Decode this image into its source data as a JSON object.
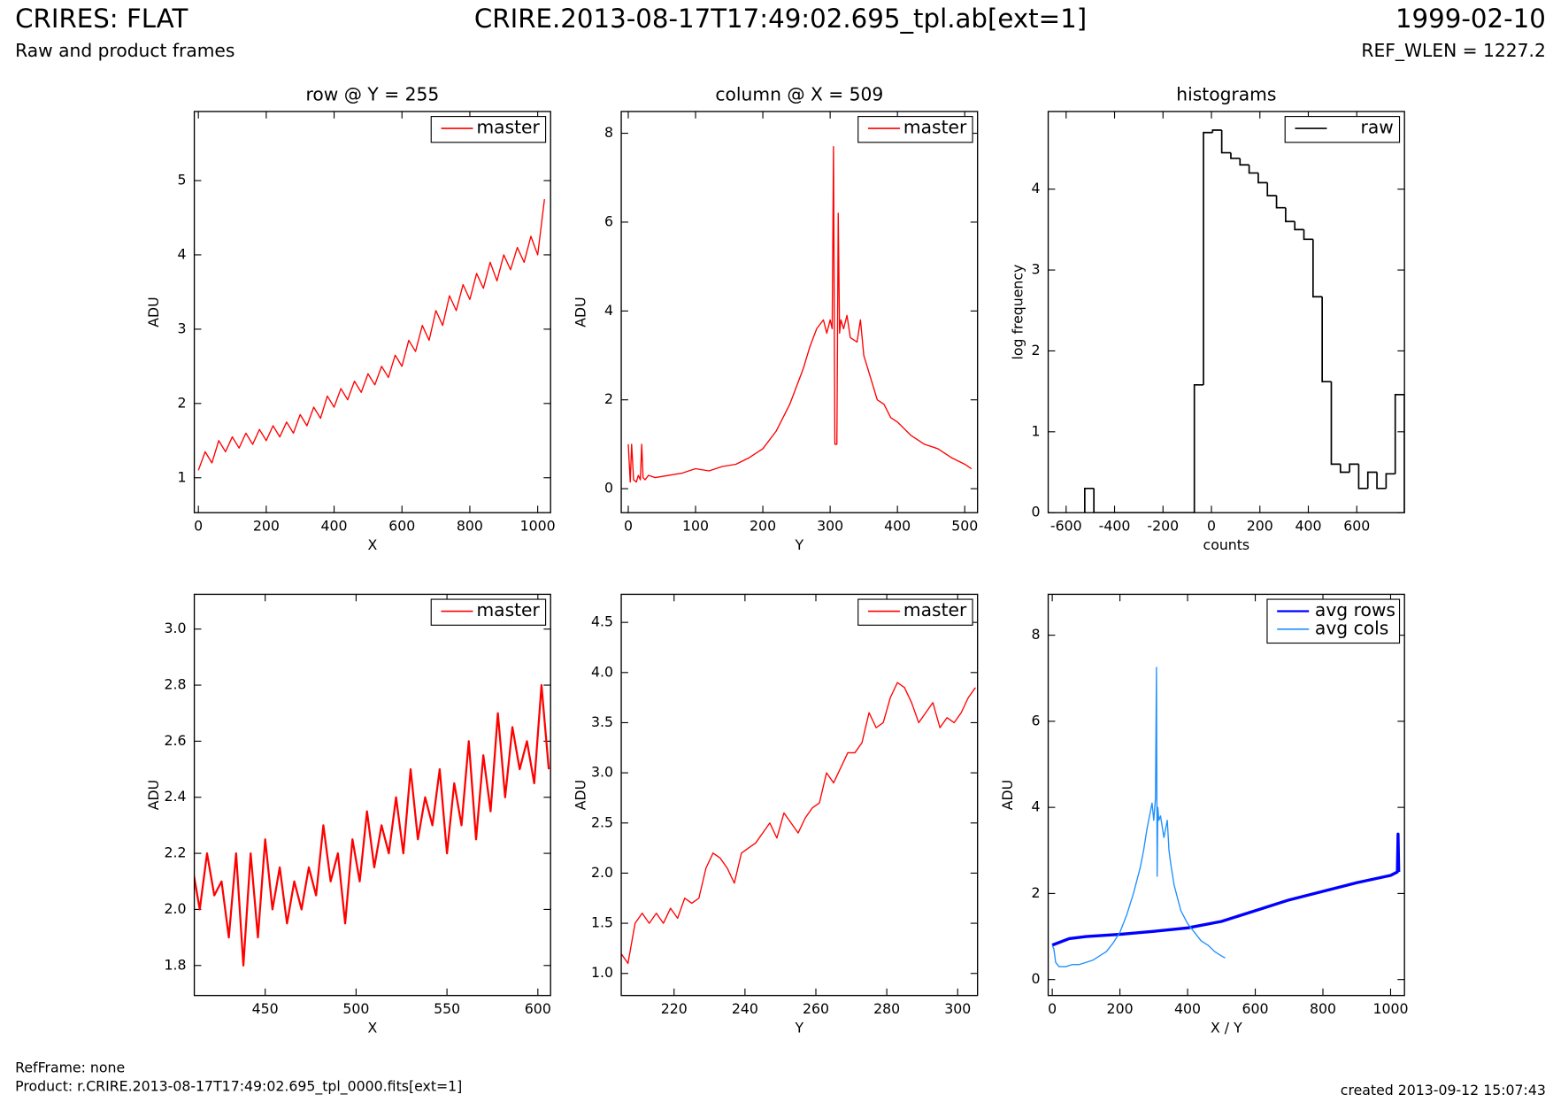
{
  "header": {
    "left_title": "CRIRES: FLAT",
    "center_title": "CRIRE.2013-08-17T17:49:02.695_tpl.ab[ext=1]",
    "right_title": "1999-02-10",
    "subtitle": "Raw and product frames",
    "ref_wlen": "REF_WLEN = 1227.2"
  },
  "footer": {
    "refframe": "RefFrame: none",
    "product": "Product: r.CRIRE.2013-08-17T17:49:02.695_tpl_0000.fits[ext=1]",
    "created": "created 2013-09-12 15:07:43"
  },
  "chart_data": [
    {
      "type": "line",
      "title": "row @ Y = 255",
      "x_label": "X",
      "y_label": "ADU",
      "xlim": [
        -12,
        1038
      ],
      "ylim": [
        0.53,
        5.93
      ],
      "xticks": [
        0,
        200,
        400,
        600,
        800,
        1000
      ],
      "yticks": [
        1,
        2,
        3,
        4,
        5
      ],
      "legend": "upper right",
      "series": [
        {
          "name": "master",
          "color": "#ff0000",
          "x": [
            0,
            20,
            40,
            60,
            80,
            100,
            120,
            140,
            160,
            180,
            200,
            220,
            240,
            260,
            280,
            300,
            320,
            340,
            360,
            380,
            400,
            420,
            440,
            460,
            480,
            500,
            520,
            540,
            560,
            580,
            600,
            620,
            640,
            660,
            680,
            700,
            720,
            740,
            760,
            780,
            800,
            820,
            840,
            860,
            880,
            900,
            920,
            940,
            960,
            980,
            1000,
            1020
          ],
          "values": [
            1.1,
            1.35,
            1.2,
            1.5,
            1.35,
            1.55,
            1.4,
            1.6,
            1.45,
            1.65,
            1.5,
            1.7,
            1.55,
            1.75,
            1.6,
            1.85,
            1.7,
            1.95,
            1.8,
            2.1,
            1.95,
            2.2,
            2.05,
            2.3,
            2.15,
            2.4,
            2.25,
            2.5,
            2.35,
            2.65,
            2.5,
            2.85,
            2.7,
            3.05,
            2.85,
            3.25,
            3.05,
            3.45,
            3.25,
            3.6,
            3.4,
            3.75,
            3.55,
            3.9,
            3.65,
            4.0,
            3.8,
            4.1,
            3.9,
            4.25,
            4.0,
            4.75
          ]
        }
      ]
    },
    {
      "type": "line",
      "title": "column @ X = 509",
      "x_label": "Y",
      "y_label": "ADU",
      "xlim": [
        -10.4,
        519
      ],
      "ylim": [
        -0.54,
        8.49
      ],
      "xticks": [
        0,
        100,
        200,
        300,
        400,
        500
      ],
      "yticks": [
        0,
        2,
        4,
        6,
        8
      ],
      "legend": "upper right",
      "series": [
        {
          "name": "master",
          "color": "#ff0000",
          "x": [
            0,
            3,
            5,
            8,
            12,
            15,
            18,
            20,
            22,
            25,
            30,
            40,
            60,
            80,
            100,
            120,
            140,
            160,
            180,
            200,
            220,
            240,
            260,
            270,
            280,
            290,
            295,
            300,
            303,
            305,
            307,
            310,
            312,
            314,
            316,
            320,
            325,
            330,
            340,
            345,
            350,
            360,
            370,
            380,
            390,
            400,
            420,
            440,
            460,
            480,
            500,
            510
          ],
          "values": [
            1.0,
            0.15,
            1.0,
            0.2,
            0.15,
            0.3,
            0.2,
            1.0,
            0.25,
            0.2,
            0.3,
            0.25,
            0.3,
            0.35,
            0.45,
            0.4,
            0.5,
            0.55,
            0.7,
            0.9,
            1.3,
            1.9,
            2.7,
            3.2,
            3.6,
            3.8,
            3.5,
            3.8,
            3.6,
            7.7,
            1.0,
            1.0,
            6.2,
            3.5,
            3.8,
            3.6,
            3.9,
            3.4,
            3.3,
            3.8,
            3.0,
            2.5,
            2.0,
            1.9,
            1.6,
            1.5,
            1.2,
            1.0,
            0.9,
            0.7,
            0.55,
            0.45
          ]
        }
      ]
    },
    {
      "type": "histogram",
      "title": "histograms",
      "x_label": "counts",
      "y_label": "log frequency",
      "xlim": [
        -674,
        797
      ],
      "ylim": [
        0,
        4.96
      ],
      "xticks": [
        -600,
        -400,
        -200,
        0,
        200,
        400,
        600
      ],
      "yticks": [
        0,
        1,
        2,
        3,
        4
      ],
      "legend": "upper right",
      "bins": [
        -523,
        -485.3,
        -447.6,
        -409.9,
        -372.2,
        -334.5,
        -296.8,
        -259.1,
        -221.4,
        -183.7,
        -146,
        -108.3,
        -70.6,
        -32.9,
        4.8,
        42.5,
        80.2,
        117.9,
        155.6,
        193.3,
        231,
        268.7,
        306.4,
        344.1,
        381.8,
        419.5,
        457.2,
        494.9,
        532.6,
        570.3,
        608,
        645.7,
        683.4,
        721.1,
        758.8,
        796.5
      ],
      "series": [
        {
          "name": "raw",
          "color": "#000000",
          "values": [
            0.3,
            0,
            0,
            0,
            0,
            0,
            0,
            0,
            0,
            0,
            0,
            0,
            1.58,
            4.7,
            4.73,
            4.45,
            4.38,
            4.3,
            4.2,
            4.08,
            3.92,
            3.77,
            3.6,
            3.5,
            3.38,
            2.67,
            1.62,
            0.6,
            0.5,
            0.6,
            0.3,
            0.5,
            0.3,
            0.48,
            1.46
          ]
        }
      ]
    },
    {
      "type": "line",
      "x_label": "X",
      "y_label": "ADU",
      "xlim": [
        411,
        607
      ],
      "ylim": [
        1.693,
        3.124
      ],
      "xticks": [
        450,
        500,
        550,
        600
      ],
      "yticks": [
        1.8,
        {
          "value": 2,
          "label": "2.0"
        },
        2.2,
        2.4,
        2.6,
        2.8,
        {
          "value": 3,
          "label": "3.0"
        }
      ],
      "legend": "upper right",
      "line_width": 2,
      "series": [
        {
          "name": "master",
          "color": "#ff0000",
          "x": [
            410,
            414,
            418,
            422,
            426,
            430,
            434,
            438,
            442,
            446,
            450,
            454,
            458,
            462,
            466,
            470,
            474,
            478,
            482,
            486,
            490,
            494,
            498,
            502,
            506,
            510,
            514,
            518,
            522,
            526,
            530,
            534,
            538,
            542,
            546,
            550,
            554,
            558,
            562,
            566,
            570,
            574,
            578,
            582,
            586,
            590,
            594,
            598,
            602,
            606
          ],
          "values": [
            2.15,
            2.0,
            2.2,
            2.05,
            2.1,
            1.9,
            2.2,
            1.8,
            2.2,
            1.9,
            2.25,
            2.0,
            2.15,
            1.95,
            2.1,
            2.0,
            2.15,
            2.05,
            2.3,
            2.1,
            2.2,
            1.95,
            2.25,
            2.1,
            2.35,
            2.15,
            2.3,
            2.2,
            2.4,
            2.2,
            2.5,
            2.25,
            2.4,
            2.3,
            2.5,
            2.2,
            2.45,
            2.3,
            2.6,
            2.25,
            2.55,
            2.35,
            2.7,
            2.4,
            2.65,
            2.5,
            2.6,
            2.45,
            2.8,
            2.5
          ]
        }
      ]
    },
    {
      "type": "line",
      "x_label": "Y",
      "y_label": "ADU",
      "xlim": [
        205.1,
        305.6
      ],
      "ylim": [
        0.78,
        4.78
      ],
      "xticks": [
        220,
        240,
        260,
        280,
        300
      ],
      "yticks": [
        {
          "value": 1,
          "label": "1.0"
        },
        1.5,
        {
          "value": 2,
          "label": "2.0"
        },
        2.5,
        {
          "value": 3,
          "label": "3.0"
        },
        3.5,
        {
          "value": 4,
          "label": "4.0"
        },
        4.5
      ],
      "legend": "upper right",
      "series": [
        {
          "name": "master",
          "color": "#ff0000",
          "x": [
            205,
            207,
            209,
            211,
            213,
            215,
            217,
            219,
            221,
            223,
            225,
            227,
            229,
            231,
            233,
            235,
            237,
            239,
            241,
            243,
            245,
            247,
            249,
            251,
            253,
            255,
            257,
            259,
            261,
            263,
            265,
            267,
            269,
            271,
            273,
            275,
            277,
            279,
            281,
            283,
            285,
            287,
            289,
            291,
            293,
            295,
            297,
            299,
            301,
            303,
            305
          ],
          "values": [
            1.2,
            1.1,
            1.5,
            1.6,
            1.5,
            1.6,
            1.5,
            1.65,
            1.55,
            1.75,
            1.7,
            1.75,
            2.05,
            2.2,
            2.15,
            2.05,
            1.9,
            2.2,
            2.25,
            2.3,
            2.4,
            2.5,
            2.35,
            2.6,
            2.5,
            2.4,
            2.55,
            2.65,
            2.7,
            3.0,
            2.9,
            3.05,
            3.2,
            3.2,
            3.3,
            3.6,
            3.45,
            3.5,
            3.75,
            3.9,
            3.85,
            3.7,
            3.5,
            3.6,
            3.7,
            3.45,
            3.55,
            3.5,
            3.6,
            3.75,
            3.85
          ]
        }
      ]
    },
    {
      "type": "line",
      "x_label": "X / Y",
      "y_label": "ADU",
      "xlim": [
        -12,
        1041
      ],
      "ylim": [
        -0.37,
        8.95
      ],
      "xticks": [
        0,
        200,
        400,
        600,
        800,
        1000
      ],
      "yticks": [
        0,
        2,
        4,
        6,
        8
      ],
      "legend": "upper right",
      "series": [
        {
          "name": "avg rows",
          "color": "#0000ff",
          "line_width": 3,
          "x": [
            0,
            50,
            100,
            200,
            300,
            400,
            500,
            600,
            700,
            800,
            900,
            1000,
            1020,
            1022,
            1024
          ],
          "values": [
            0.8,
            0.95,
            1.0,
            1.05,
            1.12,
            1.2,
            1.35,
            1.6,
            1.85,
            2.05,
            2.25,
            2.42,
            2.5,
            3.38,
            2.5
          ]
        },
        {
          "name": "avg cols",
          "color": "#1e8fff",
          "x": [
            0,
            5,
            10,
            20,
            40,
            60,
            80,
            100,
            120,
            140,
            160,
            180,
            200,
            220,
            240,
            260,
            270,
            280,
            290,
            295,
            300,
            305,
            308,
            310,
            312,
            315,
            320,
            330,
            340,
            345,
            350,
            360,
            380,
            400,
            420,
            440,
            460,
            480,
            500,
            511
          ],
          "values": [
            0.8,
            0.7,
            0.4,
            0.3,
            0.3,
            0.35,
            0.35,
            0.4,
            0.45,
            0.55,
            0.65,
            0.85,
            1.1,
            1.5,
            2.0,
            2.6,
            3.0,
            3.5,
            3.9,
            4.1,
            3.7,
            4.2,
            7.25,
            2.4,
            4.0,
            3.7,
            3.8,
            3.3,
            3.7,
            3.0,
            2.7,
            2.2,
            1.6,
            1.3,
            1.1,
            0.9,
            0.8,
            0.65,
            0.55,
            0.5
          ]
        }
      ]
    }
  ]
}
